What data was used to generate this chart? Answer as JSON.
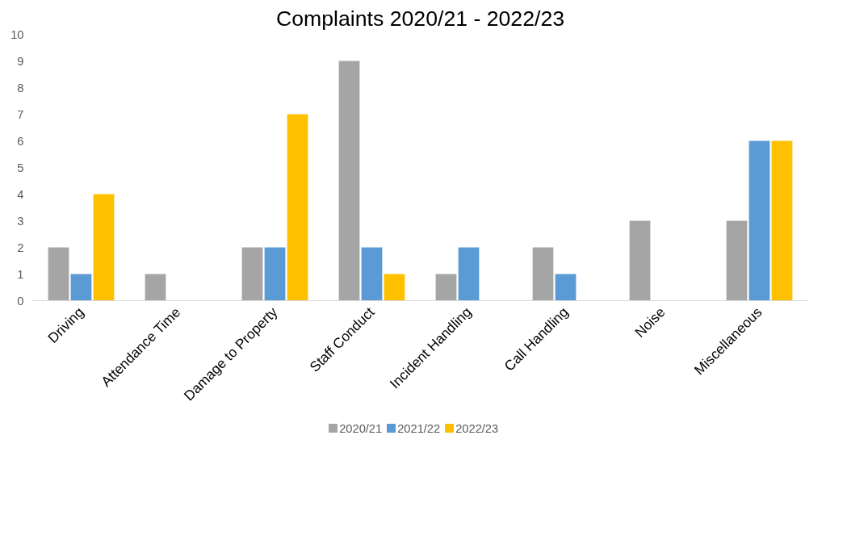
{
  "chart_data": {
    "type": "bar",
    "title": "Complaints 2020/21 - 2022/23",
    "categories": [
      "Driving",
      "Attendance Time",
      "Damage to Property",
      "Staff Conduct",
      "Incident Handling",
      "Call Handling",
      "Noise",
      "Miscellaneous"
    ],
    "series": [
      {
        "name": "2020/21",
        "color": "#a5a5a5",
        "values": [
          2,
          1,
          2,
          9,
          1,
          2,
          3,
          3
        ]
      },
      {
        "name": "2021/22",
        "color": "#5b9bd5",
        "values": [
          1,
          0,
          2,
          2,
          2,
          1,
          0,
          6
        ]
      },
      {
        "name": "2022/23",
        "color": "#ffc000",
        "values": [
          4,
          0,
          7,
          1,
          0,
          0,
          0,
          6
        ]
      }
    ],
    "ylim": [
      0,
      10
    ],
    "yticks": [
      0,
      1,
      2,
      3,
      4,
      5,
      6,
      7,
      8,
      9,
      10
    ],
    "grid": false,
    "legend": "bottom"
  }
}
